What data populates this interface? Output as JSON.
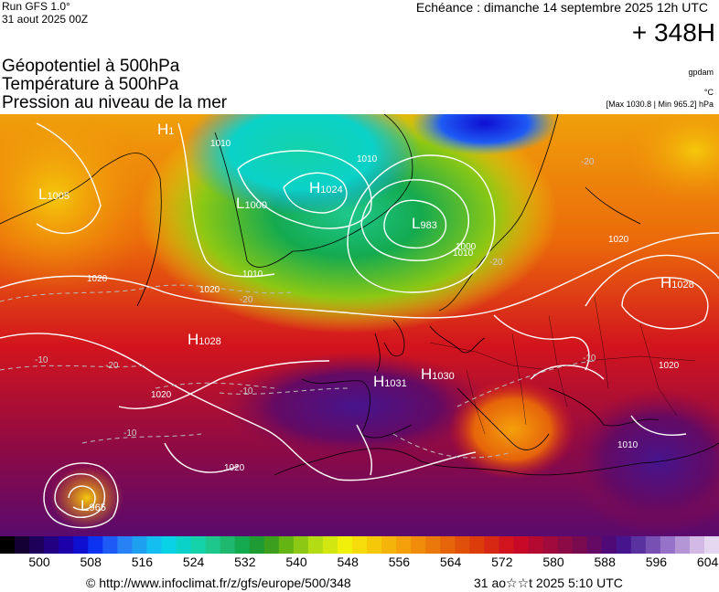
{
  "header": {
    "run": "Run GFS 1.0°",
    "run_date": "31 aout 2025 00Z",
    "forecast_date": "Echéance : dimanche 14 septembre 2025 12h UTC",
    "lead_time": "+ 348H"
  },
  "titles": [
    "Géopotentiel à 500hPa",
    "Température à 500hPa",
    "Pression au niveau de la mer"
  ],
  "side": {
    "source": "gpdam",
    "unit": "°C",
    "minmax": "[Max 1030.8 | Min 965.2] hPa"
  },
  "map": {
    "pressure_centers": [
      {
        "type": "H",
        "value": "1028",
        "label": "H1028 west Atlantic"
      },
      {
        "type": "H",
        "value": "1031",
        "label": "H1031 Bay of Biscay"
      },
      {
        "type": "H",
        "value": "1030",
        "label": "H1030 France"
      },
      {
        "type": "H",
        "value": "1028",
        "label": "H1028 Russia"
      },
      {
        "type": "H",
        "value": "1024",
        "label": "H1024 Greenland"
      },
      {
        "type": "H",
        "value": "1",
        "label": "H top"
      },
      {
        "type": "L",
        "value": "1005",
        "label": "L1005 Canada"
      },
      {
        "type": "L",
        "value": "1000",
        "label": "L1000 Greenland west"
      },
      {
        "type": "L",
        "value": "983",
        "label": "L983 Norwegian Sea"
      },
      {
        "type": "L",
        "value": "965",
        "label": "L965 Azores"
      }
    ],
    "isobar_labels": [
      "1020",
      "1020",
      "1020",
      "1020",
      "1020",
      "1020",
      "1010",
      "1010",
      "1010",
      "1010",
      "1010",
      "1000"
    ],
    "isotherm_labels": [
      "-20",
      "-20",
      "-20",
      "-10",
      "-10",
      "-10",
      "-10",
      "-20"
    ]
  },
  "colorbar": {
    "ticks": [
      "500",
      "508",
      "516",
      "524",
      "532",
      "540",
      "548",
      "556",
      "564",
      "572",
      "580",
      "588",
      "596",
      "604"
    ],
    "colors": [
      "#000000",
      "#140032",
      "#1e005a",
      "#230082",
      "#1e00aa",
      "#0f0fd2",
      "#0a32f0",
      "#1e5af5",
      "#2882f5",
      "#1ea0f0",
      "#14bef0",
      "#0ad2e6",
      "#0ad2c8",
      "#14d2aa",
      "#1ec88c",
      "#1eb96e",
      "#14aa50",
      "#1e9b32",
      "#3ca01e",
      "#64b414",
      "#8cc814",
      "#b4dc14",
      "#d2e60f",
      "#f0f00a",
      "#f5dc0a",
      "#f5c80a",
      "#f5b40a",
      "#f5a00a",
      "#f08c0a",
      "#eb780a",
      "#e6640a",
      "#e1500a",
      "#dc3c0a",
      "#d72814",
      "#d2141e",
      "#c80a28",
      "#b40a32",
      "#a00a3c",
      "#8c0a46",
      "#780a50",
      "#640a64",
      "#500a78",
      "#46148c",
      "#5a32a0",
      "#7850b4",
      "#9673c8",
      "#b496d7",
      "#d2b9e6",
      "#e6d7f0"
    ]
  },
  "footer": {
    "url": "© http://www.infoclimat.fr/z/gfs/europe/500/348",
    "time": "31 ao☆☆t 2025  5:10 UTC"
  }
}
